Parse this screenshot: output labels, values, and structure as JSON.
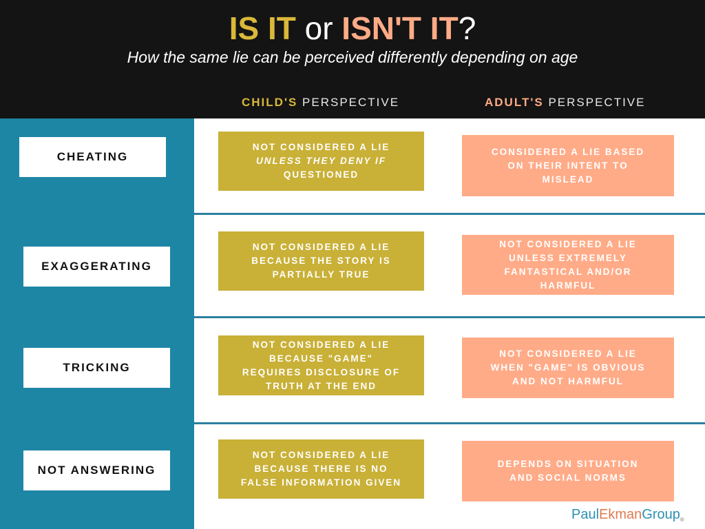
{
  "header": {
    "title_part1": "IS IT",
    "title_part2": " or ",
    "title_part3": "ISN'T IT",
    "title_part4": "?",
    "subtitle": "How the same lie can be perceived differently depending on age"
  },
  "columns": {
    "child": {
      "highlight": "CHILD'S",
      "rest": " PERSPECTIVE"
    },
    "adult": {
      "highlight": "ADULT'S",
      "rest": "  PERSPECTIVE"
    }
  },
  "rows": [
    {
      "label": "CHEATING",
      "child": [
        "NOT CONSIDERED A LIE",
        "UNLESS THEY DENY IF",
        "QUESTIONED"
      ],
      "adult": [
        "CONSIDERED A LIE BASED",
        "ON THEIR INTENT TO",
        "MISLEAD"
      ]
    },
    {
      "label": "EXAGGERATING",
      "child": [
        "NOT CONSIDERED A LIE",
        "BECAUSE THE STORY IS",
        "PARTIALLY TRUE"
      ],
      "adult": [
        "NOT CONSIDERED A LIE",
        "UNLESS EXTREMELY",
        "FANTASTICAL AND/OR",
        "HARMFUL"
      ]
    },
    {
      "label": "TRICKING",
      "child": [
        "NOT CONSIDERED A LIE",
        "BECAUSE \"GAME\"",
        "REQUIRES DISCLOSURE OF",
        "TRUTH AT THE END"
      ],
      "adult": [
        "NOT CONSIDERED A LIE",
        "WHEN \"GAME\" IS OBVIOUS",
        "AND NOT HARMFUL"
      ]
    },
    {
      "label": "NOT ANSWERING",
      "child": [
        "NOT CONSIDERED A LIE",
        "BECAUSE THERE IS NO",
        "FALSE INFORMATION GIVEN"
      ],
      "adult": [
        "DEPENDS ON SITUATION",
        "AND SOCIAL NORMS"
      ]
    }
  ],
  "logo": {
    "part1": "Paul",
    "part2": "Ekman",
    "part3": "Group",
    "reg": "®"
  },
  "colors": {
    "background_dark": "#141414",
    "sidebar": "#1e86a5",
    "child_accent": "#c9b037",
    "adult_accent": "#ffab88"
  }
}
